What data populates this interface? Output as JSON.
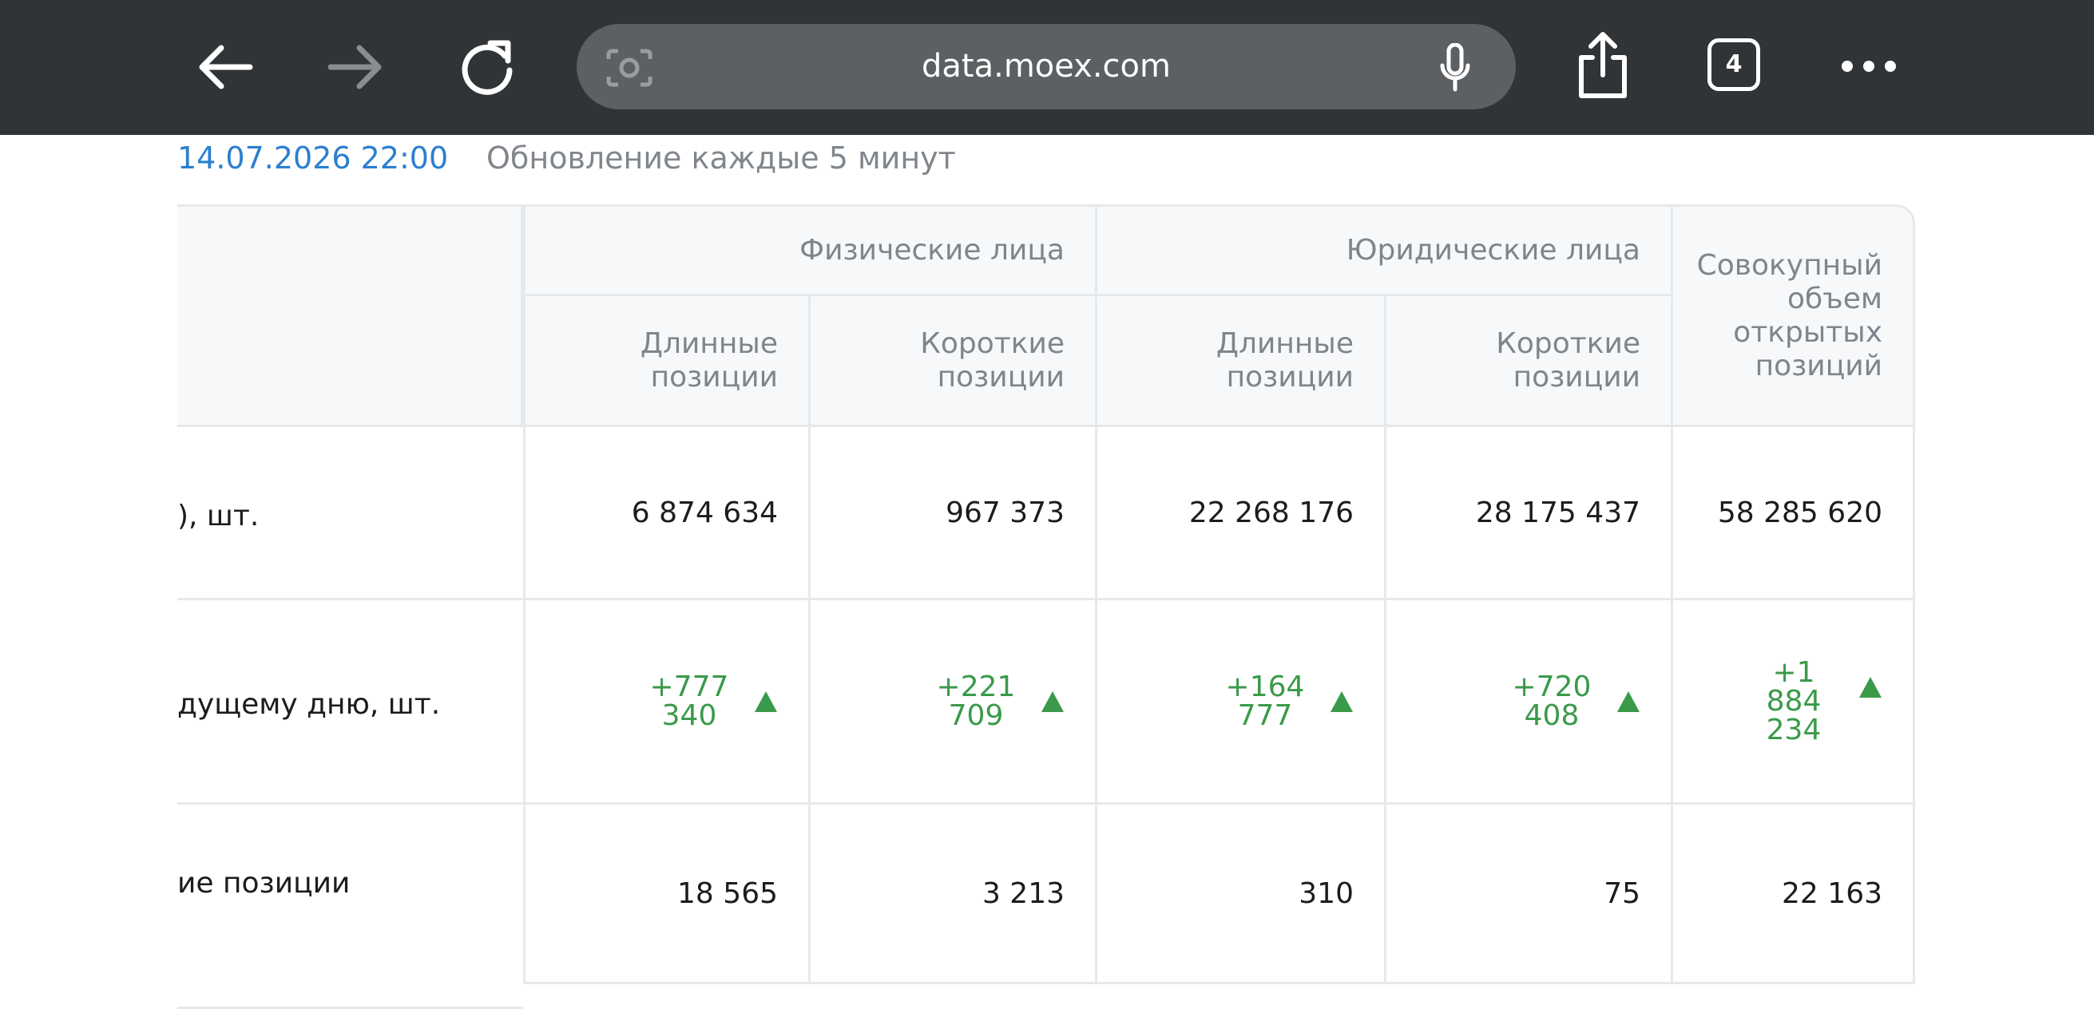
{
  "browser": {
    "url": "data.moex.com",
    "tab_count": "4"
  },
  "header": {
    "datetime": "14.07.2026 22:00",
    "update_note": "Обновление каждые 5 минут"
  },
  "table": {
    "groups": [
      "Физические лица",
      "Юридические лица",
      "Совокупный объем открытых позиций"
    ],
    "columns": [
      "Длинные позиции",
      "Короткие позиции",
      "Длинные позиции",
      "Короткие позиции"
    ],
    "rows": [
      {
        "label": "), шт.",
        "cells": [
          "6 874 634",
          "967 373",
          "22 268 176",
          "28 175 437",
          "58 285 620"
        ]
      },
      {
        "label": "дущему дню, шт.",
        "cells": [
          "+777 340",
          "+221 709",
          "+164 777",
          "+720 408",
          "+1 884 234"
        ]
      },
      {
        "label": "ие позиции",
        "cells": [
          "18 565",
          "3 213",
          "310",
          "75",
          "22 163"
        ]
      }
    ]
  }
}
